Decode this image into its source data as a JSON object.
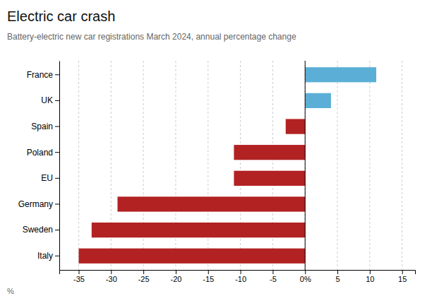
{
  "chart_data": {
    "type": "bar",
    "orientation": "horizontal",
    "title": "Electric car crash",
    "subtitle": "Battery-electric new car registrations March 2024, annual percentage change",
    "xlabel": "%",
    "categories": [
      "France",
      "UK",
      "Spain",
      "Poland",
      "EU",
      "Germany",
      "Sweden",
      "Italy"
    ],
    "values": [
      11,
      4,
      -3,
      -11,
      -11,
      -29,
      -33,
      -35
    ],
    "colors": [
      "#5bafd6",
      "#5bafd6",
      "#b22222",
      "#b22222",
      "#b22222",
      "#b22222",
      "#b22222",
      "#b22222"
    ],
    "xlim": [
      -38,
      17
    ],
    "xticks": [
      -35,
      -30,
      -25,
      -20,
      -15,
      -10,
      -5,
      {
        "value": 0,
        "label": "0%"
      },
      5,
      10,
      15
    ],
    "grid": true
  }
}
